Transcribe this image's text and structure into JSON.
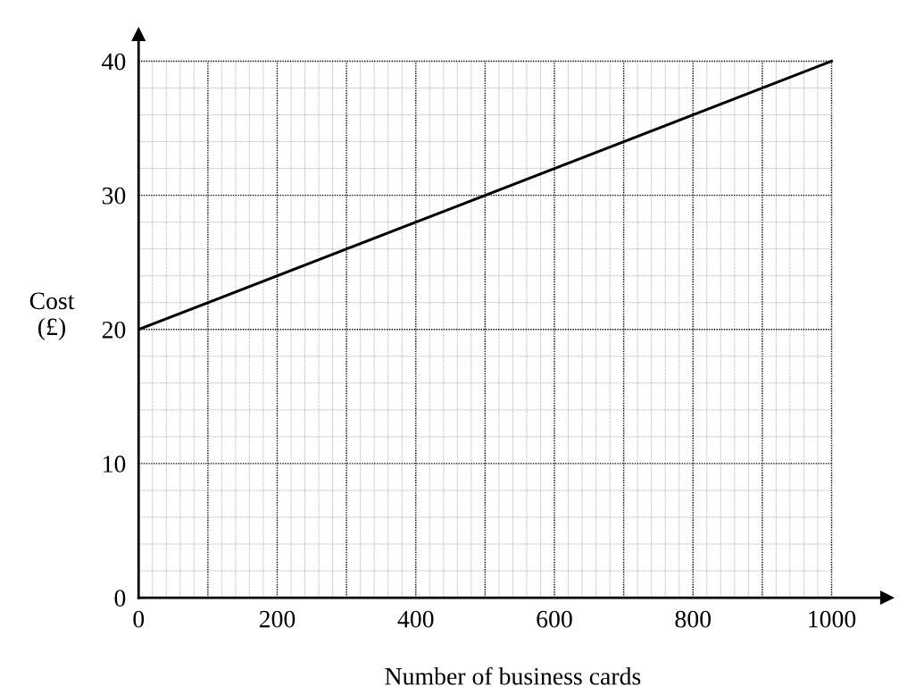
{
  "chart_data": {
    "type": "line",
    "xlabel": "Number of business cards",
    "ylabel": "Cost\n(£)",
    "x": [
      0,
      1000
    ],
    "series": [
      {
        "color": "#000000",
        "values": [
          20,
          40
        ]
      }
    ],
    "xlim": [
      0,
      1080
    ],
    "ylim": [
      0,
      42
    ],
    "xticks": [
      0,
      200,
      400,
      600,
      800,
      1000
    ],
    "yticks": [
      0,
      10,
      20,
      30,
      40
    ],
    "grid": true,
    "marker": "none",
    "line_style": "solid"
  }
}
